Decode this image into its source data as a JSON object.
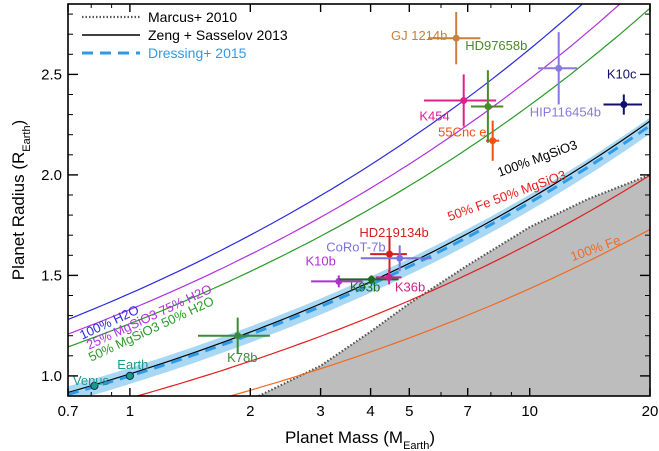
{
  "chart_data": {
    "type": "scatter",
    "title": "",
    "xlabel": "Planet Mass (M",
    "xlabel_sub": "Earth",
    "xlabel_end": ")",
    "ylabel": "Planet Radius (R",
    "ylabel_sub": "Earth",
    "ylabel_end": ")",
    "x_scale": "log",
    "xlim": [
      0.7,
      20
    ],
    "ylim": [
      0.9,
      2.85
    ],
    "x_ticks": [
      0.7,
      1,
      2,
      3,
      4,
      5,
      7,
      10,
      20
    ],
    "x_tick_labels": [
      "0.7",
      "1",
      "2",
      "3",
      "4",
      "5",
      "7",
      "10",
      "20"
    ],
    "y_ticks": [
      1.0,
      1.5,
      2.0,
      2.5
    ],
    "y_tick_labels": [
      "1.0",
      "1.5",
      "2.0",
      "2.5"
    ],
    "legend_position": "top-left",
    "legend": [
      {
        "label": "Marcus+ 2010",
        "style": "dotted",
        "color": "#555555"
      },
      {
        "label": "Zeng + Sasselov 2013",
        "style": "solid",
        "color": "#000000"
      },
      {
        "label": "Dressing+ 2015",
        "style": "dashed",
        "color": "#2f9be8"
      }
    ],
    "model_curves": [
      {
        "label": "100% H2O",
        "color": "#2a2ae0",
        "k": 1.41,
        "e": 0.27
      },
      {
        "label": "25% MgSiO3 75% H2O",
        "color": "#b030e0",
        "k": 1.33,
        "e": 0.27
      },
      {
        "label": "50% MgSiO3 50% H2O",
        "color": "#2a9a2a",
        "k": 1.26,
        "e": 0.27
      },
      {
        "label": "100% MgSiO3",
        "color": "#000000",
        "k": 1.01,
        "e": 0.27
      },
      {
        "label": "50% Fe 50% MgSiO3",
        "color": "#e02020",
        "k": 0.89,
        "e": 0.27
      },
      {
        "label": "100% Fe",
        "color": "#f06a20",
        "k": 0.77,
        "e": 0.27
      }
    ],
    "curve_labels": [
      {
        "text": "100% H2O",
        "x": 0.76,
        "y": 1.18,
        "rot": -25,
        "color": "#2a2ae0"
      },
      {
        "text": "25% MgSiO3 75% H2O",
        "x": 0.79,
        "y": 1.13,
        "rot": -25,
        "color": "#b030e0"
      },
      {
        "text": "50% MgSiO3 50% H2O",
        "x": 0.8,
        "y": 1.07,
        "rot": -25,
        "color": "#2a9a2a"
      },
      {
        "text": "100% MgSiO3",
        "x": 8.4,
        "y": 1.99,
        "rot": -20,
        "color": "#000000"
      },
      {
        "text": "50% Fe 50% MgSiO3",
        "x": 6.3,
        "y": 1.77,
        "rot": -20,
        "color": "#e02020"
      },
      {
        "text": "100% Fe",
        "x": 12.8,
        "y": 1.57,
        "rot": -20,
        "color": "#f06a20"
      }
    ],
    "dressing_relation": {
      "label": "Dressing+ 2015",
      "k": 1.0,
      "e": 0.27,
      "band": 0.04,
      "color": "#2f9be8"
    },
    "marcus_limit": {
      "label": "Marcus+ 2010",
      "points": [
        [
          2.1,
          0.9
        ],
        [
          3,
          1.05
        ],
        [
          4,
          1.22
        ],
        [
          5,
          1.36
        ],
        [
          7,
          1.55
        ],
        [
          10,
          1.74
        ],
        [
          14,
          1.88
        ],
        [
          20,
          2.0
        ]
      ]
    },
    "series": [
      {
        "name": "Venus",
        "x": 0.815,
        "y": 0.95,
        "xerr": [
          0,
          0
        ],
        "yerr": [
          0,
          0
        ],
        "color": "#1a9a8a",
        "lx": 0.72,
        "ly": 0.955,
        "anchor": "start"
      },
      {
        "name": "Earth",
        "x": 1.0,
        "y": 1.0,
        "xerr": [
          0,
          0
        ],
        "yerr": [
          0,
          0
        ],
        "color": "#1a9a8a",
        "lx": 0.93,
        "ly": 1.035,
        "anchor": "start"
      },
      {
        "name": "K78b",
        "x": 1.86,
        "y": 1.2,
        "xerr": [
          0.38,
          0.38
        ],
        "yerr": [
          0.09,
          0.09
        ],
        "color": "#3a8a3a",
        "lx": 1.75,
        "ly": 1.07,
        "anchor": "start"
      },
      {
        "name": "K10b",
        "x": 3.33,
        "y": 1.47,
        "xerr": [
          0.49,
          0.49
        ],
        "yerr": [
          0.03,
          0.03
        ],
        "color": "#b030d0",
        "lx": 2.75,
        "ly": 1.55,
        "anchor": "start"
      },
      {
        "name": "K93b",
        "x": 4.02,
        "y": 1.48,
        "xerr": [
          0.68,
          0.68
        ],
        "yerr": [
          0.02,
          0.02
        ],
        "color": "#1a6a1a",
        "lx": 3.55,
        "ly": 1.42,
        "anchor": "start"
      },
      {
        "name": "K36b",
        "x": 4.45,
        "y": 1.49,
        "xerr": [
          0.33,
          0.33
        ],
        "yerr": [
          0.035,
          0.035
        ],
        "color": "#d0208a",
        "lx": 4.6,
        "ly": 1.42,
        "anchor": "start"
      },
      {
        "name": "HD219134b",
        "x": 4.46,
        "y": 1.606,
        "xerr": [
          0.47,
          0.47
        ],
        "yerr": [
          0.086,
          0.086
        ],
        "color": "#d02020",
        "lx": 3.75,
        "ly": 1.69,
        "anchor": "start"
      },
      {
        "name": "CoRoT-7b",
        "x": 4.73,
        "y": 1.585,
        "xerr": [
          0.95,
          0.95
        ],
        "yerr": [
          0.064,
          0.064
        ],
        "color": "#7a70e0",
        "lx": 3.1,
        "ly": 1.62,
        "anchor": "start"
      },
      {
        "name": "55Cnc e",
        "x": 8.08,
        "y": 2.17,
        "xerr": [
          0.31,
          0.31
        ],
        "yerr": [
          0.1,
          0.1
        ],
        "color": "#f05010",
        "lx": 5.9,
        "ly": 2.19,
        "anchor": "start"
      },
      {
        "name": "K454",
        "x": 6.84,
        "y": 2.37,
        "xerr": [
          1.4,
          1.4
        ],
        "yerr": [
          0.13,
          0.13
        ],
        "color": "#e0208a",
        "lx": 5.3,
        "ly": 2.27,
        "anchor": "start"
      },
      {
        "name": "HD97658b",
        "x": 7.86,
        "y": 2.34,
        "xerr": [
          0.73,
          0.73
        ],
        "yerr": [
          0.18,
          0.18
        ],
        "color": "#4a8a2a",
        "lx": 6.9,
        "ly": 2.62,
        "anchor": "start"
      },
      {
        "name": "GJ 1214b",
        "x": 6.55,
        "y": 2.68,
        "xerr": [
          0.98,
          0.98
        ],
        "yerr": [
          0.13,
          0.13
        ],
        "color": "#c8803a",
        "lx": 4.5,
        "ly": 2.67,
        "anchor": "start"
      },
      {
        "name": "HIP116454b",
        "x": 11.82,
        "y": 2.53,
        "xerr": [
          1.33,
          1.33
        ],
        "yerr": [
          0.18,
          0.18
        ],
        "color": "#8a78e0",
        "lx": 10.0,
        "ly": 2.29,
        "anchor": "start"
      },
      {
        "name": "K10c",
        "x": 17.2,
        "y": 2.35,
        "xerr": [
          1.9,
          1.9
        ],
        "yerr": [
          0.05,
          0.05
        ],
        "color": "#10106a",
        "lx": 15.6,
        "ly": 2.48,
        "anchor": "start"
      }
    ]
  }
}
